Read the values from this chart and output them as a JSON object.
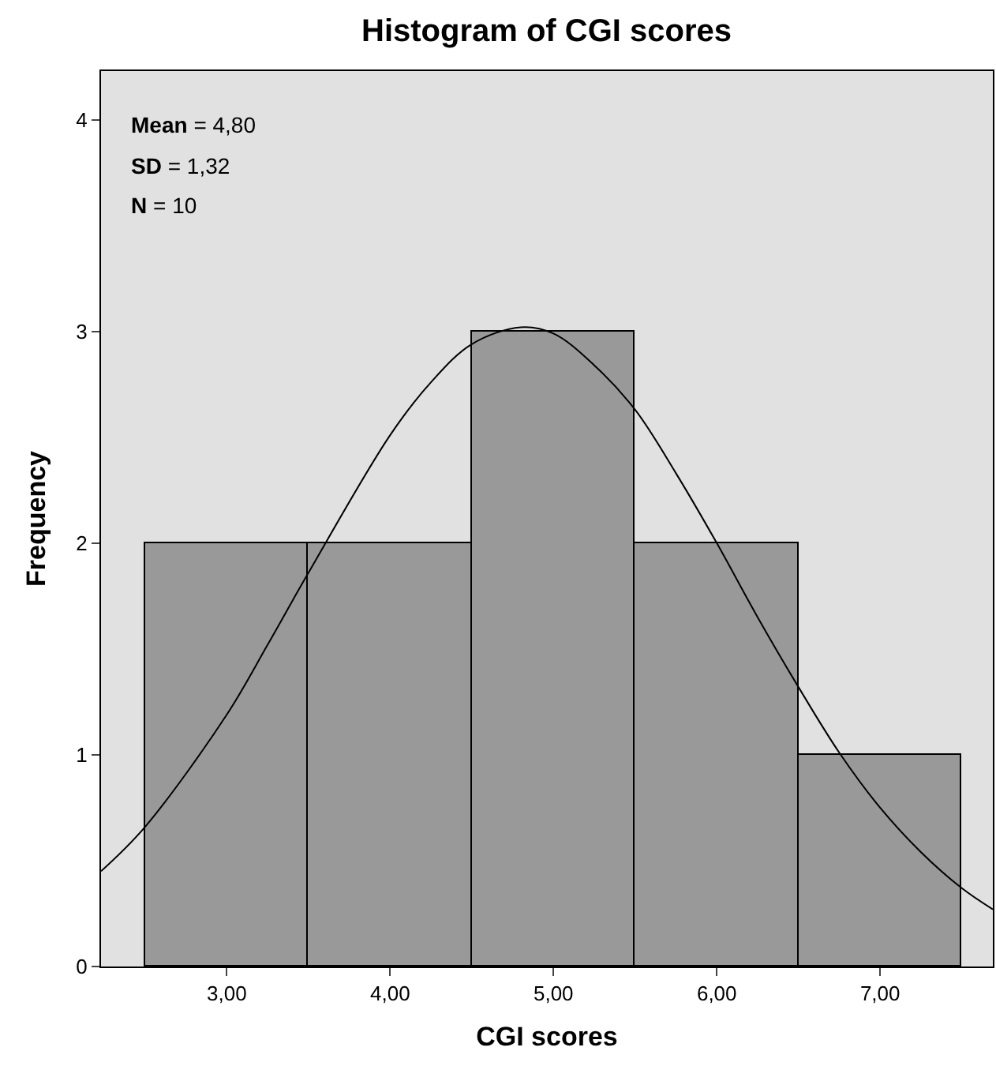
{
  "chart_data": {
    "type": "histogram",
    "title": "Histogram of CGI scores",
    "xlabel": "CGI scores",
    "ylabel": "Frequency",
    "series": [
      {
        "bins": [
          2.5,
          3.5,
          4.5,
          5.5,
          6.5,
          7.5
        ],
        "values": [
          2,
          2,
          3,
          2,
          1
        ],
        "color": "#999999"
      },
      {
        "type": "line",
        "x": [
          2.23,
          2.5,
          3,
          3.25,
          3.5,
          4,
          4.25,
          4.5,
          4.8,
          5,
          5.25,
          5.5,
          5.75,
          6,
          6.25,
          6.5,
          6.75,
          7,
          7.25,
          7.5,
          7.69
        ],
        "values": [
          0.45,
          0.66,
          1.19,
          1.52,
          1.86,
          2.51,
          2.76,
          2.94,
          3.02,
          2.99,
          2.84,
          2.63,
          2.33,
          2.0,
          1.65,
          1.32,
          1.01,
          0.75,
          0.54,
          0.37,
          0.27
        ],
        "color": "#000000"
      }
    ],
    "xlim": [
      2.23,
      7.69
    ],
    "ylim": [
      0,
      4.23
    ],
    "xticks": [
      {
        "value": 3,
        "label": "3,00"
      },
      {
        "value": 4,
        "label": "4,00"
      },
      {
        "value": 5,
        "label": "5,00"
      },
      {
        "value": 6,
        "label": "6,00"
      },
      {
        "value": 7,
        "label": "7,00"
      }
    ],
    "yticks": [
      0,
      1,
      2,
      3,
      4
    ],
    "annotations": [
      "Mean = 4,80",
      "SD = 1,32",
      "N = 10"
    ],
    "grid": false,
    "legend": false
  }
}
